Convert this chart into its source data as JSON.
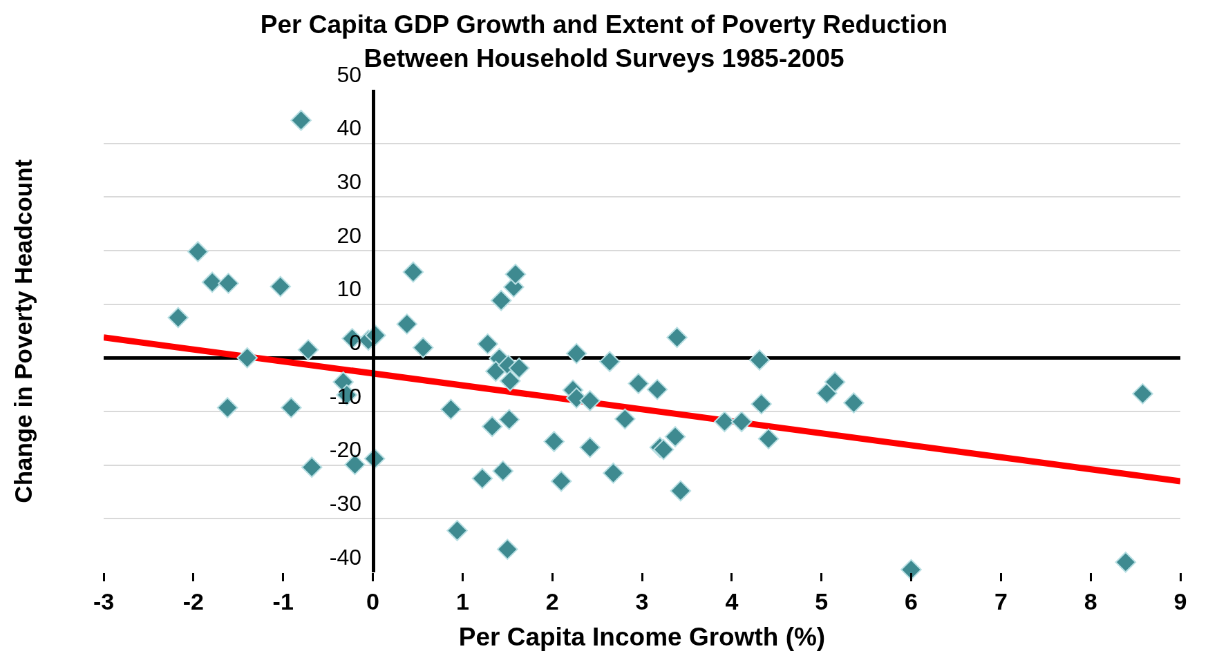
{
  "chart_data": {
    "type": "scatter",
    "title": "Per Capita GDP Growth and Extent of Poverty Reduction\nBetween Household Surveys 1985-2005",
    "xlabel": "Per Capita Income Growth (%)",
    "ylabel": "Change in Poverty Headcount",
    "series": [
      {
        "color": "#3e8a90",
        "marker": "diamond",
        "x": [
          -0.8,
          -1.95,
          -1.79,
          -1.61,
          -1.03,
          -2.17,
          -1.4,
          -0.72,
          -0.23,
          -0.05,
          0.03,
          0.38,
          0.45,
          0.56,
          -1.62,
          -0.91,
          -0.33,
          -0.29,
          -0.68,
          -0.2,
          0.02,
          0.87,
          0.94,
          1.28,
          1.41,
          1.37,
          1.51,
          1.63,
          1.53,
          1.43,
          1.57,
          1.59,
          1.33,
          1.52,
          1.22,
          1.45,
          1.5,
          2.02,
          2.1,
          2.27,
          2.23,
          2.27,
          2.42,
          2.42,
          2.64,
          2.81,
          2.68,
          2.96,
          3.17,
          3.2,
          3.24,
          3.37,
          3.39,
          3.43,
          3.92,
          4.11,
          4.31,
          4.33,
          4.41,
          5.06,
          5.15,
          5.36,
          6.0,
          8.39,
          8.58
        ],
        "values": [
          44.3,
          19.8,
          14.1,
          13.9,
          13.3,
          7.5,
          0,
          1.5,
          3.6,
          3.3,
          4.2,
          6.3,
          16.0,
          1.9,
          -9.3,
          -9.3,
          -4.5,
          -6.9,
          -20.4,
          -19.9,
          -18.8,
          -9.6,
          -32.2,
          2.6,
          -0.1,
          -2.5,
          -1.4,
          -1.9,
          -4.3,
          10.7,
          13.2,
          15.6,
          -12.8,
          -11.5,
          -22.5,
          -21.1,
          -35.7,
          -15.6,
          -23.0,
          0.8,
          -6.0,
          -7.5,
          -8.0,
          -16.7,
          -0.7,
          -11.4,
          -21.5,
          -4.8,
          -5.9,
          -16.7,
          -17.1,
          -14.7,
          3.8,
          -24.8,
          -11.9,
          -11.9,
          -0.4,
          -8.6,
          -15.1,
          -6.6,
          -4.5,
          -8.4,
          -39.5,
          -38.1,
          -6.7
        ]
      },
      {
        "type": "line",
        "color": "#ff0000",
        "marker": "none",
        "x": [
          -3,
          9
        ],
        "values": [
          3.8,
          -23.0
        ]
      }
    ],
    "xlim": [
      -3,
      9
    ],
    "xticks": [
      -3,
      -2,
      -1,
      0,
      1,
      2,
      3,
      4,
      5,
      6,
      7,
      8,
      9
    ],
    "ylim": [
      -40,
      50
    ],
    "yticks": [
      -40,
      -30,
      -20,
      -10,
      0,
      10,
      20,
      30,
      40,
      50
    ],
    "grid": "y"
  }
}
